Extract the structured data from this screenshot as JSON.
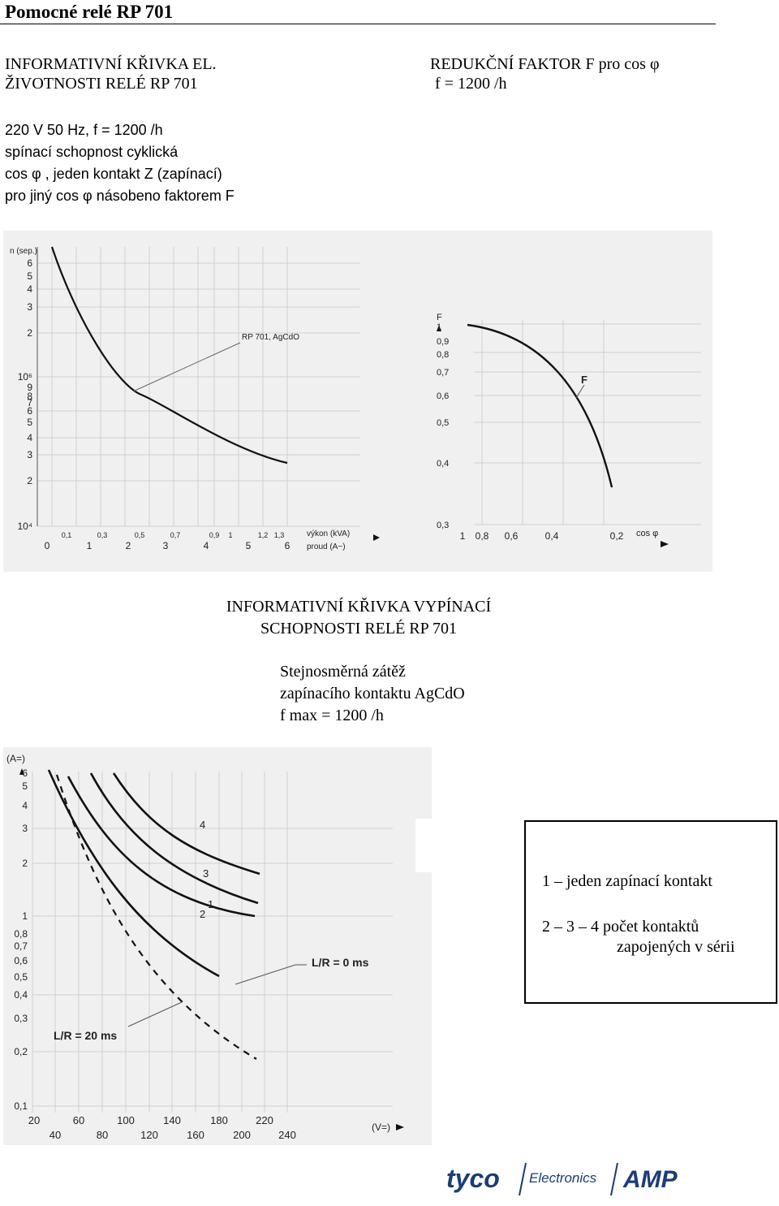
{
  "page": {
    "title": "Pomocné relé RP 701",
    "left_header": [
      "INFORMATIVNÍ KŘIVKA EL.",
      "ŽIVOTNOSTI RELÉ RP 701"
    ],
    "right_header": [
      "REDUKČNÍ FAKTOR F pro cos φ",
      "f = 1200 /h"
    ],
    "description": [
      "220 V 50 Hz, f = 1200 /h",
      "spínací schopnost cyklická",
      "cos φ , jeden kontakt Z (zapínací)",
      "pro jiný cos φ násobeno faktorem F"
    ],
    "section_title": [
      "INFORMATIVNÍ KŘIVKA VYPÍNACÍ",
      "SCHOPNOSTI RELÉ RP 701"
    ],
    "dc_info": [
      "Stejnosměrná zátěž",
      "zapínacího kontaktu AgCdO",
      "f max = 1200 /h"
    ],
    "legend": {
      "line1": "1 – jeden zapínací kontakt",
      "line2": "2 – 3 – 4  počet kontaktů",
      "line3": "zapojených v sérii"
    },
    "logo": {
      "left": "tyco",
      "middle": "Electronics",
      "right": "AMP"
    }
  },
  "chart_data": [
    {
      "type": "line",
      "ylabel": "n (sep.)",
      "xlabel_top": "výkon (kVA)",
      "xlabel_bottom": "proud (A~)",
      "y_scale": "log",
      "y_tick_labels": [
        "10⁴",
        "2",
        "3",
        "4",
        "5",
        "6",
        "7",
        "8",
        "9",
        "10⁶ (10⁵)",
        "2",
        "3",
        "4",
        "5",
        "6"
      ],
      "x_top_ticks": [
        "0,1",
        "0,3",
        "0,5",
        "0,7",
        "0,9",
        "1",
        "1,2",
        "1,3"
      ],
      "x_bottom_ticks": [
        "0",
        "1",
        "2",
        "3",
        "4",
        "5",
        "6"
      ],
      "annotation": "RP 701, AgCdO",
      "series": [
        {
          "x_current_A": [
            0.2,
            0.5,
            1,
            1.5,
            2,
            3,
            4,
            5,
            6
          ],
          "y_cycles": [
            1000000,
            380000,
            180000,
            120000,
            90000,
            60000,
            45000,
            38000,
            32000
          ]
        }
      ]
    },
    {
      "type": "line",
      "ylabel": "F",
      "xlabel": "cos φ",
      "y_tick_labels": [
        "1",
        "0,9",
        "0,8",
        "0,7",
        "0,6",
        "0,5",
        "0,4",
        "0,3"
      ],
      "x_tick_labels": [
        "1",
        "0,8",
        "0,6",
        "0,4",
        "0,2"
      ],
      "annotation": "F",
      "series": [
        {
          "x_cos_phi": [
            1.0,
            0.9,
            0.8,
            0.7,
            0.6,
            0.5,
            0.4,
            0.3,
            0.25
          ],
          "y_F": [
            1.0,
            0.97,
            0.93,
            0.86,
            0.77,
            0.67,
            0.56,
            0.45,
            0.4
          ]
        }
      ]
    },
    {
      "type": "line",
      "ylabel": "(A=)",
      "xlabel": "(V=)",
      "y_scale": "log",
      "x_scale": "log",
      "y_tick_labels": [
        "0,1",
        "0,2",
        "0,3",
        "0,4",
        "0,5",
        "0,6",
        "0,7",
        "0,8",
        "1",
        "2",
        "3",
        "4",
        "5",
        "6"
      ],
      "x_tick_labels_top": [
        "20",
        "60",
        "100",
        "140",
        "180",
        "220"
      ],
      "x_tick_labels_bottom": [
        "40",
        "80",
        "120",
        "160",
        "200",
        "240"
      ],
      "annotations": [
        "L/R = 0 ms",
        "L/R = 20 ms"
      ],
      "series": [
        {
          "name": "1",
          "x": [
            44,
            60,
            80,
            100,
            140,
            180,
            240
          ],
          "y": [
            6,
            3,
            1.6,
            1.0,
            0.6,
            0.45,
            0.33
          ]
        },
        {
          "name": "2",
          "x": [
            62,
            80,
            100,
            120,
            160,
            200,
            240
          ],
          "y": [
            6,
            3.2,
            2.0,
            1.3,
            0.85,
            0.65,
            0.53
          ]
        },
        {
          "name": "3",
          "x": [
            82,
            100,
            120,
            140,
            180,
            220,
            240
          ],
          "y": [
            6,
            3.6,
            2.4,
            1.8,
            1.2,
            0.95,
            0.85
          ]
        },
        {
          "name": "4",
          "x": [
            100,
            120,
            140,
            160,
            200,
            240
          ],
          "y": [
            6,
            4.0,
            3.0,
            2.4,
            1.8,
            1.45
          ]
        },
        {
          "name": "L/R = 20 ms",
          "x": [
            28,
            40,
            60,
            80,
            100,
            140,
            180,
            220
          ],
          "y": [
            6,
            3.2,
            1.4,
            0.8,
            0.55,
            0.33,
            0.25,
            0.2
          ]
        }
      ]
    }
  ]
}
